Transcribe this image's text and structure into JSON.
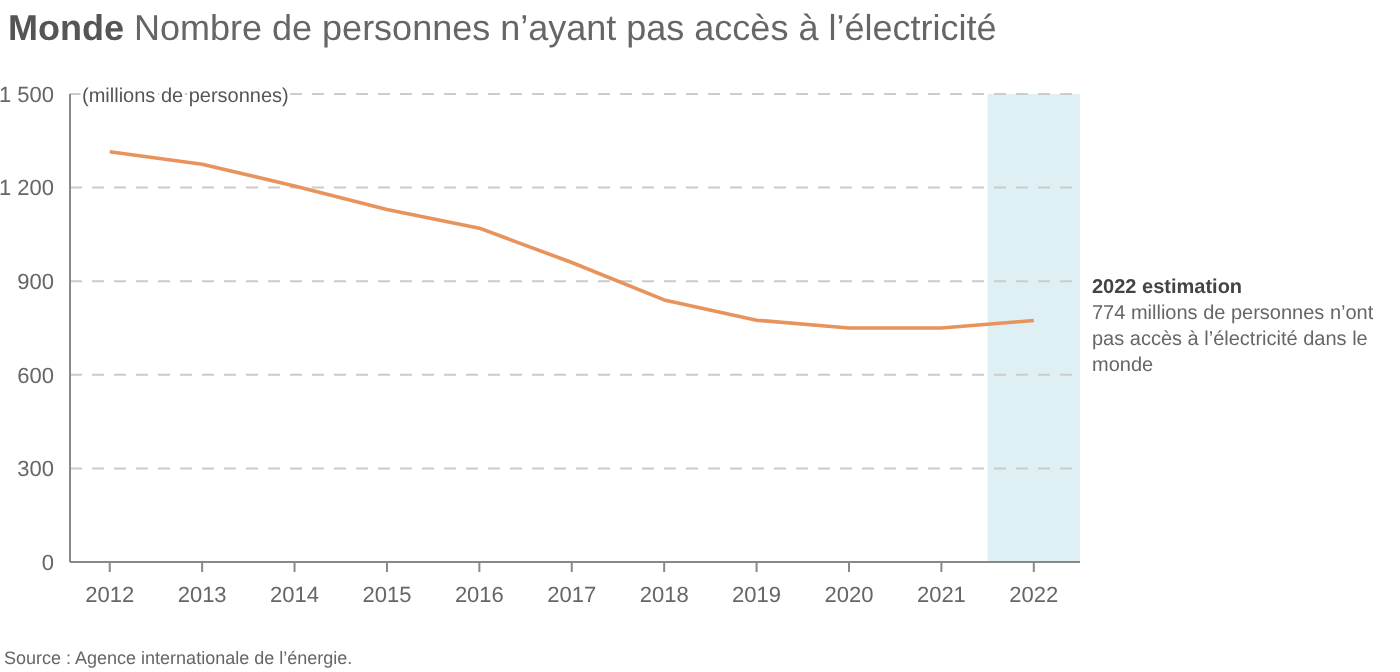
{
  "chart_data": {
    "type": "line",
    "title": "Monde",
    "subtitle": "Nombre de personnes n’ayant pas accès à l’électricité",
    "ylabel": "(millions de personnes)",
    "x": [
      2012,
      2013,
      2014,
      2015,
      2016,
      2017,
      2018,
      2019,
      2020,
      2021,
      2022
    ],
    "series": [
      {
        "color": "#e8935c",
        "values": [
          1315,
          1275,
          1205,
          1130,
          1070,
          960,
          840,
          775,
          750,
          750,
          774
        ]
      }
    ],
    "xlim": [
      2011.57,
      2022.5
    ],
    "xticks": [
      2012,
      2013,
      2014,
      2015,
      2016,
      2017,
      2018,
      2019,
      2020,
      2021,
      2022
    ],
    "ylim": [
      0,
      1500
    ],
    "yticks": [
      0,
      300,
      600,
      900,
      {
        "value": 1200,
        "label": "1 200"
      },
      {
        "value": 1500,
        "label": "1 500"
      }
    ],
    "grid": "y",
    "marker": "none",
    "line_style": "solid",
    "bands": [
      {
        "axis": "x",
        "from": 2021.5,
        "to": 2022.5,
        "label": "2022 estimation",
        "color": "#dff0f5"
      }
    ],
    "annotations": [
      "774 millions de personnes n’ont pas accès à l’électricité dans le monde",
      "Source : Agence internationale de l’énergie."
    ]
  }
}
